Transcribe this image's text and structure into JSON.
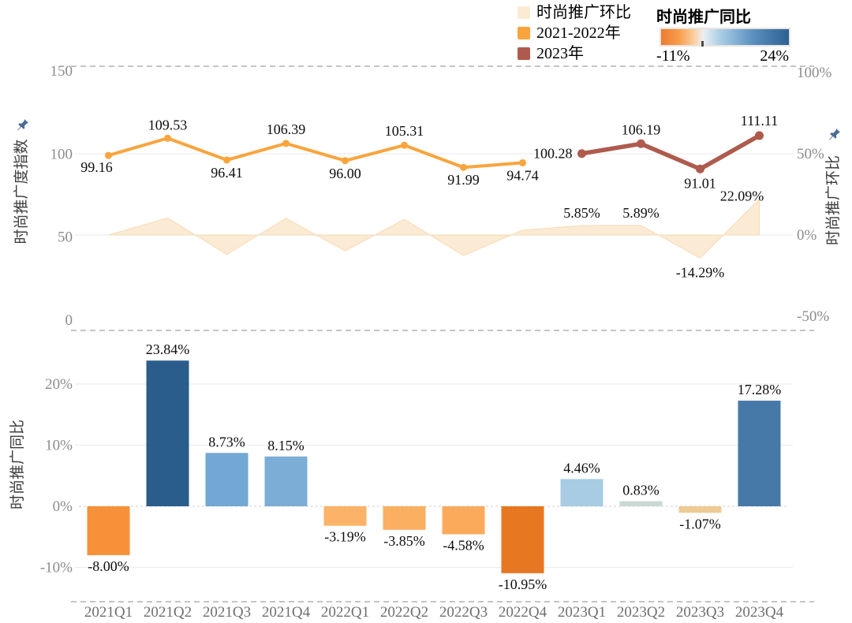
{
  "legend": {
    "items": [
      {
        "label": "时尚推广环比",
        "color": "#FBEAD4"
      },
      {
        "label": "2021-2022年",
        "color": "#F9A43D"
      },
      {
        "label": "2023年",
        "color": "#AE5B4E"
      }
    ]
  },
  "visual_map": {
    "title": "时尚推广同比",
    "min_label": "-11%",
    "max_label": "24%",
    "gradient_colors": [
      "#EC7C2F",
      "#F89C4C",
      "#FBD0A2",
      "#EBEFF2",
      "#ABCEE6",
      "#5B8FC0",
      "#2D6092"
    ]
  },
  "axes": {
    "left": {
      "title": "时尚推广度指数",
      "ticks": [
        "150",
        "100",
        "50",
        "0"
      ],
      "tick_values": [
        150,
        100,
        50,
        0
      ]
    },
    "right": {
      "title": "时尚推广环比",
      "ticks": [
        "100%",
        "50%",
        "0%",
        "-50%"
      ],
      "tick_values": [
        100,
        50,
        0,
        -50
      ]
    },
    "bottom_left": {
      "title": "时尚推广同比",
      "ticks": [
        "20%",
        "10%",
        "0%",
        "-10%"
      ],
      "tick_values": [
        20,
        10,
        0,
        -10
      ]
    }
  },
  "chart_data": [
    {
      "type": "line",
      "title": "时尚推广度指数",
      "categories": [
        "2021Q1",
        "2021Q2",
        "2021Q3",
        "2021Q4",
        "2022Q1",
        "2022Q2",
        "2022Q3",
        "2022Q4",
        "2023Q1",
        "2023Q2",
        "2023Q3",
        "2023Q4"
      ],
      "ylim": [
        0,
        150
      ],
      "yticks": [
        150,
        100,
        50,
        0
      ],
      "series": [
        {
          "name": "2021-2022年",
          "color": "#F9A43D",
          "values": [
            99.16,
            109.53,
            96.41,
            106.39,
            96.0,
            105.31,
            91.99,
            94.74,
            null,
            null,
            null,
            null
          ]
        },
        {
          "name": "2023年",
          "color": "#AE5B4E",
          "values": [
            null,
            null,
            null,
            null,
            null,
            null,
            null,
            null,
            100.28,
            106.19,
            91.01,
            111.11
          ]
        }
      ],
      "point_labels": [
        "99.16",
        "109.53",
        "96.41",
        "106.39",
        "96.00",
        "105.31",
        "91.99",
        "94.74",
        "100.28",
        "106.19",
        "91.01",
        "111.11"
      ]
    },
    {
      "type": "area",
      "title": "时尚推广环比",
      "color": "#FBEAD4",
      "ylim": [
        -50,
        100
      ],
      "yticks": [
        100,
        50,
        0,
        -50
      ],
      "values": [
        0,
        10.46,
        -11.98,
        10.35,
        -9.77,
        9.7,
        -12.65,
        2.99,
        5.85,
        5.89,
        -14.29,
        22.09
      ],
      "labels": [
        "",
        "",
        "",
        "",
        "",
        "",
        "",
        "",
        "5.85%",
        "5.89%",
        "-14.29%",
        "22.09%"
      ]
    },
    {
      "type": "bar",
      "title": "时尚推广同比",
      "ylim": [
        -15,
        25
      ],
      "yticks": [
        20,
        10,
        0,
        -10
      ],
      "values": [
        -8.0,
        23.84,
        8.73,
        8.15,
        -3.19,
        -3.85,
        -4.58,
        -10.95,
        4.46,
        0.83,
        -1.07,
        17.28
      ],
      "labels": [
        "-8.00%",
        "23.84%",
        "8.73%",
        "8.15%",
        "-3.19%",
        "-3.85%",
        "-4.58%",
        "-10.95%",
        "4.46%",
        "0.83%",
        "-1.07%",
        "17.28%"
      ],
      "colors": [
        "#F6913A",
        "#2B5D8C",
        "#72A8D3",
        "#7BADD6",
        "#FCB368",
        "#FBAF61",
        "#FBAA5C",
        "#E87722",
        "#A7CCE3",
        "#C9D9D3",
        "#EECB94",
        "#4679A8"
      ]
    }
  ]
}
